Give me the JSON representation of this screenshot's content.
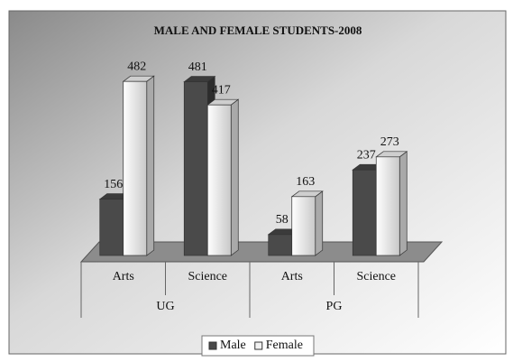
{
  "chart_data": {
    "type": "bar3d",
    "title": "MALE AND FEMALE STUDENTS-2008",
    "categories": [
      "Arts",
      "Science",
      "Arts",
      "Science"
    ],
    "category_groups": [
      "UG",
      "PG"
    ],
    "series": [
      {
        "name": "Male",
        "color": "#4a4a4a",
        "values": [
          156,
          481,
          58,
          237
        ]
      },
      {
        "name": "Female",
        "color": "#f2f2f2",
        "values": [
          482,
          417,
          163,
          273
        ]
      }
    ],
    "legend": "bottom"
  }
}
